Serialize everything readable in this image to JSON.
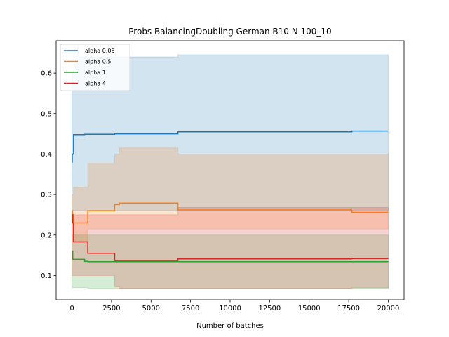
{
  "chart_data": {
    "type": "line",
    "title": "Probs BalancingDoubling German B10 N 100_10",
    "xlabel": "Number of batches",
    "ylabel": "",
    "xlim": [
      -1000,
      21000
    ],
    "ylim": [
      0.04,
      0.68
    ],
    "x_ticks": [
      0,
      2500,
      5000,
      7500,
      10000,
      12500,
      15000,
      17500,
      20000
    ],
    "y_ticks": [
      0.1,
      0.2,
      0.3,
      0.4,
      0.5,
      0.6
    ],
    "grid": false,
    "legend_position": "top-left",
    "series": [
      {
        "name": "alpha 0.05",
        "color": "#1f77b4",
        "mean": [
          [
            0,
            0.38
          ],
          [
            20,
            0.4
          ],
          [
            60,
            0.4
          ],
          [
            100,
            0.448
          ],
          [
            800,
            0.449
          ],
          [
            2700,
            0.45
          ],
          [
            6700,
            0.455
          ],
          [
            17700,
            0.457
          ],
          [
            20000,
            0.457
          ]
        ],
        "lower": [
          [
            0,
            0.26
          ],
          [
            100,
            0.26
          ],
          [
            2700,
            0.26
          ],
          [
            20000,
            0.26
          ]
        ],
        "upper": [
          [
            0,
            0.6
          ],
          [
            100,
            0.64
          ],
          [
            6700,
            0.645
          ],
          [
            20000,
            0.645
          ]
        ]
      },
      {
        "name": "alpha 0.5",
        "color": "#ff7f0e",
        "mean": [
          [
            0,
            0.26
          ],
          [
            40,
            0.25
          ],
          [
            100,
            0.23
          ],
          [
            1000,
            0.26
          ],
          [
            2700,
            0.275
          ],
          [
            3000,
            0.279
          ],
          [
            6700,
            0.262
          ],
          [
            17700,
            0.256
          ],
          [
            20000,
            0.256
          ]
        ],
        "lower": [
          [
            0,
            0.185
          ],
          [
            100,
            0.185
          ],
          [
            1000,
            0.215
          ],
          [
            6700,
            0.215
          ],
          [
            20000,
            0.215
          ]
        ],
        "upper": [
          [
            0,
            0.3
          ],
          [
            100,
            0.318
          ],
          [
            1000,
            0.377
          ],
          [
            2700,
            0.4
          ],
          [
            3000,
            0.415
          ],
          [
            6700,
            0.4
          ],
          [
            20000,
            0.4
          ]
        ]
      },
      {
        "name": "alpha 1",
        "color": "#2ca02c",
        "mean": [
          [
            0,
            0.16
          ],
          [
            50,
            0.14
          ],
          [
            800,
            0.135
          ],
          [
            1000,
            0.134
          ],
          [
            2700,
            0.134
          ],
          [
            20000,
            0.134
          ]
        ],
        "lower": [
          [
            0,
            0.07
          ],
          [
            100,
            0.07
          ],
          [
            1000,
            0.068
          ],
          [
            20000,
            0.068
          ]
        ],
        "upper": [
          [
            0,
            0.2
          ],
          [
            100,
            0.2
          ],
          [
            20000,
            0.2
          ]
        ]
      },
      {
        "name": "alpha 4",
        "color": "#d62728",
        "mean": [
          [
            0,
            0.25
          ],
          [
            50,
            0.23
          ],
          [
            100,
            0.183
          ],
          [
            1000,
            0.155
          ],
          [
            2700,
            0.137
          ],
          [
            6700,
            0.141
          ],
          [
            17700,
            0.142
          ],
          [
            20000,
            0.142
          ]
        ],
        "lower": [
          [
            0,
            0.1
          ],
          [
            100,
            0.1
          ],
          [
            2700,
            0.072
          ],
          [
            3000,
            0.068
          ],
          [
            6700,
            0.068
          ],
          [
            17700,
            0.07
          ],
          [
            20000,
            0.072
          ]
        ],
        "upper": [
          [
            0,
            0.25
          ],
          [
            100,
            0.25
          ],
          [
            6700,
            0.268
          ],
          [
            17700,
            0.268
          ],
          [
            20000,
            0.268
          ]
        ]
      }
    ]
  }
}
